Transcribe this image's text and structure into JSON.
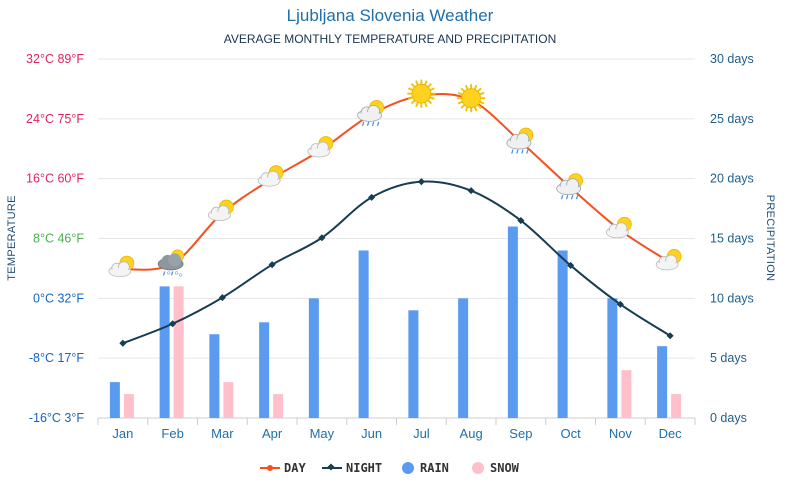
{
  "chart_data": {
    "type": "bar+line",
    "title": "Ljubljana Slovenia Weather",
    "subtitle": "AVERAGE MONTHLY TEMPERATURE AND PRECIPITATION",
    "ylabel_left": "TEMPERATURE",
    "ylabel_right": "PRECIPITATION",
    "categories": [
      "Jan",
      "Feb",
      "Mar",
      "Apr",
      "May",
      "Jun",
      "Jul",
      "Aug",
      "Sep",
      "Oct",
      "Nov",
      "Dec"
    ],
    "temp_ylim": [
      -16,
      32
    ],
    "temp_ticks": [
      {
        "value": 32,
        "label": "32°C 89°F",
        "color": "#e0245e"
      },
      {
        "value": 24,
        "label": "24°C 75°F",
        "color": "#e0245e"
      },
      {
        "value": 16,
        "label": "16°C 60°F",
        "color": "#e0245e"
      },
      {
        "value": 8,
        "label": "8°C 46°F",
        "color": "#4caf50"
      },
      {
        "value": 0,
        "label": "0°C 32°F",
        "color": "#1565c0"
      },
      {
        "value": -8,
        "label": "-8°C 17°F",
        "color": "#1565c0"
      },
      {
        "value": -16,
        "label": "-16°C 3°F",
        "color": "#1565c0"
      }
    ],
    "precip_ylim": [
      0,
      30
    ],
    "precip_ticks": [
      {
        "value": 30,
        "label": "30 days"
      },
      {
        "value": 25,
        "label": "25 days"
      },
      {
        "value": 20,
        "label": "20 days"
      },
      {
        "value": 15,
        "label": "15 days"
      },
      {
        "value": 10,
        "label": "10 days"
      },
      {
        "value": 5,
        "label": "5 days"
      },
      {
        "value": 0,
        "label": "0 days"
      }
    ],
    "series": [
      {
        "name": "DAY",
        "kind": "line",
        "axis": "temp",
        "color": "#f4511e",
        "values": [
          3.9,
          4.6,
          11.4,
          16.0,
          19.9,
          24.6,
          27.1,
          26.5,
          20.9,
          14.8,
          9.1,
          4.8
        ]
      },
      {
        "name": "NIGHT",
        "kind": "line",
        "axis": "temp",
        "color": "#163d52",
        "values": [
          -6.0,
          -3.4,
          0.1,
          4.5,
          8.1,
          13.5,
          15.6,
          14.4,
          10.4,
          4.4,
          -0.8,
          -5.0
        ]
      },
      {
        "name": "RAIN",
        "kind": "bar",
        "axis": "precip",
        "color": "#5a9bf0",
        "values": [
          3,
          11,
          7,
          8,
          10,
          14,
          9,
          10,
          16,
          14,
          10,
          6
        ]
      },
      {
        "name": "SNOW",
        "kind": "bar",
        "axis": "precip",
        "color": "#ffbfcb",
        "values": [
          2,
          11,
          3,
          2,
          0,
          0,
          0,
          0,
          0,
          0,
          4,
          2
        ]
      }
    ],
    "weather_icons": [
      "partly-sunny-icon",
      "rain-snow-cloud-icon",
      "partly-sunny-icon",
      "partly-sunny-icon",
      "partly-sunny-icon",
      "sun-rain-cloud-icon",
      "sun-icon",
      "sun-icon",
      "sun-rain-cloud-icon",
      "sun-rain-cloud-icon",
      "partly-sunny-icon",
      "partly-sunny-icon"
    ],
    "grid": true,
    "legend_position": "bottom-center"
  }
}
